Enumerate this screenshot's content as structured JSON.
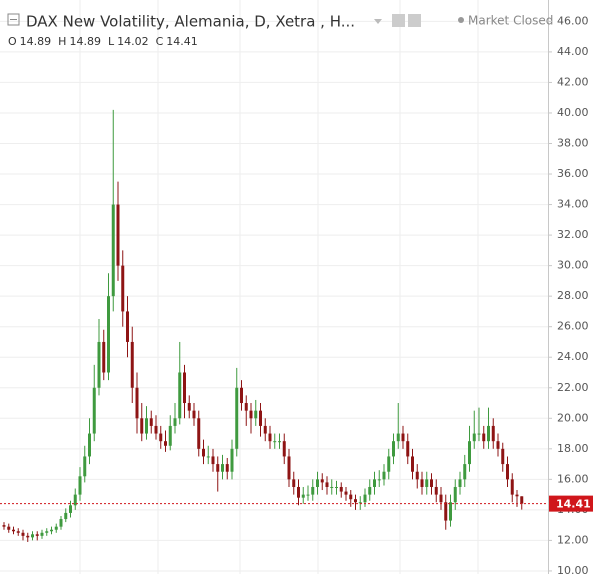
{
  "chart_data": {
    "type": "candlestick",
    "title": "DAX New Volatility, Alemania, D, Xetra , H...",
    "status": "Market Closed",
    "ohlc_legend": [
      {
        "label": "O",
        "value": 14.89
      },
      {
        "label": "H",
        "value": 14.89
      },
      {
        "label": "L",
        "value": 14.02
      },
      {
        "label": "C",
        "value": 14.41
      }
    ],
    "last_price": 14.41,
    "up_color": "#3f9a3f",
    "down_color": "#8e1414",
    "last_price_color": "#d0161b",
    "grid": true,
    "ylim": [
      9.8,
      47.4
    ],
    "yticks": [
      {
        "value": 10,
        "label": "10.00"
      },
      {
        "value": 12,
        "label": "12.00"
      },
      {
        "value": 14,
        "label": "14.00"
      },
      {
        "value": 16,
        "label": "16.00"
      },
      {
        "value": 18,
        "label": "18.00"
      },
      {
        "value": 20,
        "label": "20.00"
      },
      {
        "value": 22,
        "label": "22.00"
      },
      {
        "value": 24,
        "label": "24.00"
      },
      {
        "value": 26,
        "label": "26.00"
      },
      {
        "value": 28,
        "label": "28.00"
      },
      {
        "value": 30,
        "label": "30.00"
      },
      {
        "value": 32,
        "label": "32.00"
      },
      {
        "value": 34,
        "label": "34.00"
      },
      {
        "value": 36,
        "label": "36.00"
      },
      {
        "value": 38,
        "label": "38.00"
      },
      {
        "value": 40,
        "label": "40.00"
      },
      {
        "value": 42,
        "label": "42.00"
      },
      {
        "value": 44,
        "label": "44.00"
      },
      {
        "value": 46,
        "label": "46.00"
      }
    ],
    "open": [
      13.0,
      12.9,
      12.7,
      12.6,
      12.5,
      12.3,
      12.2,
      12.4,
      12.3,
      12.5,
      12.6,
      12.7,
      12.9,
      13.4,
      13.8,
      14.3,
      15.0,
      16.2,
      17.5,
      19.0,
      22.0,
      25.0,
      23.0,
      28.0,
      34.0,
      30.0,
      27.0,
      25.0,
      22.0,
      20.0,
      19.0,
      20.0,
      19.5,
      19.0,
      18.5,
      18.2,
      19.5,
      20.0,
      23.0,
      21.0,
      20.5,
      20.0,
      18.0,
      17.5,
      17.5,
      17.0,
      16.5,
      17.0,
      16.5,
      18.0,
      22.0,
      21.0,
      20.5,
      20.0,
      20.5,
      19.5,
      19.0,
      18.5,
      18.5,
      18.5,
      17.5,
      16.0,
      15.5,
      14.8,
      15.0,
      15.0,
      15.5,
      16.0,
      15.8,
      15.5,
      15.5,
      15.5,
      15.2,
      15.0,
      14.7,
      14.5,
      14.5,
      15.0,
      15.5,
      16.0,
      16.0,
      16.5,
      17.5,
      18.5,
      19.0,
      18.5,
      17.5,
      16.5,
      16.0,
      15.5,
      16.0,
      15.5,
      15.0,
      14.5,
      13.3,
      14.5,
      15.5,
      16.0,
      17.0,
      18.5,
      19.0,
      19.0,
      18.5,
      19.5,
      18.5,
      18.0,
      17.0,
      16.0,
      15.0,
      14.89
    ],
    "high": [
      13.2,
      13.1,
      12.9,
      12.8,
      12.7,
      12.5,
      12.6,
      12.6,
      12.7,
      12.8,
      12.9,
      13.1,
      13.6,
      14.1,
      14.6,
      15.4,
      16.8,
      18.2,
      20.0,
      23.5,
      26.5,
      25.8,
      29.5,
      40.2,
      35.5,
      31.0,
      28.0,
      26.0,
      23.0,
      21.0,
      20.8,
      20.5,
      20.2,
      19.5,
      19.2,
      20.2,
      21.0,
      25.0,
      23.5,
      21.5,
      21.0,
      20.5,
      18.6,
      18.2,
      18.0,
      17.5,
      17.6,
      17.4,
      18.6,
      23.3,
      22.5,
      21.5,
      21.0,
      21.2,
      21.0,
      20.0,
      19.5,
      19.0,
      19.0,
      19.0,
      18.0,
      16.5,
      16.0,
      15.5,
      15.6,
      16.0,
      16.5,
      16.4,
      16.2,
      16.0,
      15.9,
      15.8,
      15.5,
      15.3,
      15.0,
      14.9,
      15.4,
      16.0,
      16.5,
      16.6,
      17.0,
      18.0,
      19.0,
      21.0,
      19.5,
      19.0,
      18.0,
      17.0,
      16.5,
      16.5,
      16.4,
      16.0,
      15.5,
      15.0,
      15.0,
      16.0,
      16.5,
      17.6,
      19.5,
      20.5,
      20.7,
      19.5,
      20.7,
      20.0,
      19.0,
      18.4,
      17.5,
      16.4,
      15.3,
      14.89
    ],
    "low": [
      12.7,
      12.5,
      12.4,
      12.3,
      12.0,
      11.9,
      12.0,
      12.0,
      12.1,
      12.3,
      12.4,
      12.5,
      12.7,
      13.2,
      13.5,
      14.0,
      14.6,
      15.8,
      17.0,
      18.5,
      21.5,
      22.5,
      22.5,
      27.0,
      29.0,
      26.0,
      24.0,
      21.0,
      19.0,
      18.5,
      18.6,
      19.0,
      18.6,
      18.0,
      17.8,
      17.9,
      19.0,
      19.6,
      20.0,
      20.0,
      19.5,
      17.5,
      17.0,
      17.0,
      16.5,
      15.2,
      16.0,
      16.0,
      16.0,
      17.5,
      20.5,
      19.5,
      19.0,
      19.5,
      18.8,
      18.5,
      18.0,
      18.0,
      18.0,
      17.0,
      15.5,
      15.0,
      14.3,
      14.4,
      14.6,
      14.6,
      15.0,
      15.3,
      15.0,
      15.0,
      15.0,
      14.8,
      14.6,
      14.2,
      14.0,
      14.0,
      14.2,
      14.6,
      15.0,
      15.5,
      15.6,
      16.0,
      17.0,
      18.0,
      18.0,
      17.0,
      16.0,
      15.4,
      15.0,
      15.0,
      15.0,
      14.5,
      14.0,
      12.7,
      12.9,
      14.0,
      15.0,
      15.5,
      16.5,
      18.0,
      18.5,
      18.0,
      18.0,
      18.0,
      17.5,
      16.5,
      15.5,
      14.5,
      14.2,
      14.02
    ],
    "close": [
      12.9,
      12.7,
      12.6,
      12.5,
      12.3,
      12.2,
      12.4,
      12.3,
      12.5,
      12.6,
      12.7,
      12.9,
      13.4,
      13.8,
      14.3,
      15.0,
      16.2,
      17.5,
      19.0,
      22.0,
      25.0,
      23.0,
      28.0,
      34.0,
      30.0,
      27.0,
      25.0,
      22.0,
      20.0,
      19.0,
      20.0,
      19.5,
      19.0,
      18.5,
      18.2,
      19.5,
      20.0,
      23.0,
      21.0,
      20.5,
      20.0,
      18.0,
      17.5,
      17.5,
      17.0,
      16.5,
      17.0,
      16.5,
      18.0,
      22.0,
      21.0,
      20.5,
      20.0,
      20.5,
      19.5,
      19.0,
      18.5,
      18.5,
      18.5,
      17.5,
      16.0,
      15.5,
      14.8,
      15.0,
      15.0,
      15.5,
      16.0,
      15.8,
      15.5,
      15.5,
      15.5,
      15.2,
      15.0,
      14.7,
      14.5,
      14.5,
      15.0,
      15.5,
      16.0,
      16.0,
      16.5,
      17.5,
      18.5,
      19.0,
      18.5,
      17.5,
      16.5,
      16.0,
      15.5,
      16.0,
      15.5,
      15.0,
      14.5,
      13.3,
      14.5,
      15.5,
      16.0,
      17.0,
      18.5,
      19.0,
      19.0,
      18.5,
      19.5,
      18.5,
      18.0,
      17.0,
      16.0,
      15.0,
      14.89,
      14.41
    ]
  }
}
